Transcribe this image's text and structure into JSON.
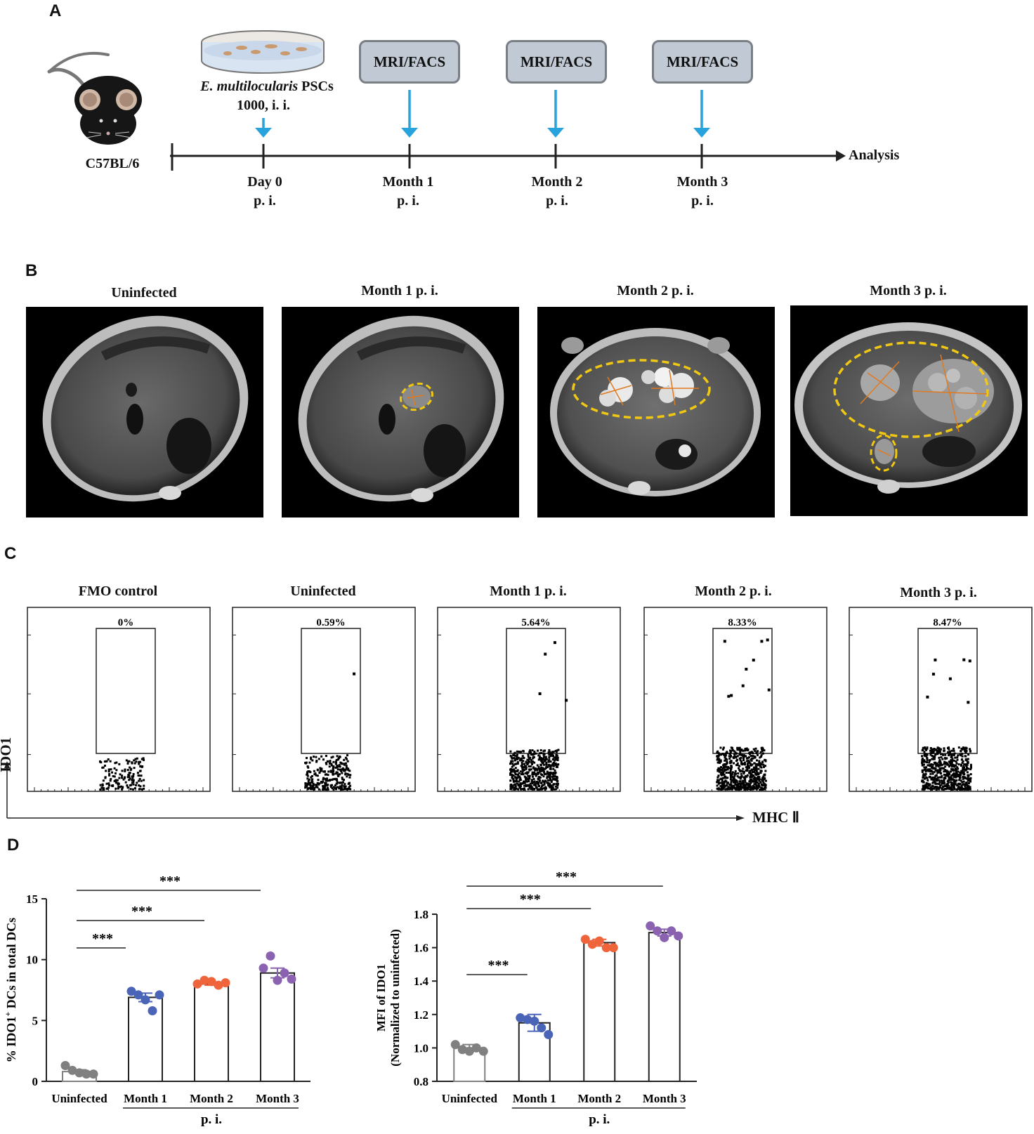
{
  "panels": {
    "a": "A",
    "b": "B",
    "c": "C",
    "d": "D"
  },
  "timeline": {
    "mouse_label": "C57BL/6",
    "psc_label_italic": "E. multilocularis",
    "psc_label_rest": " PSCs",
    "psc_dose": "1000, i. i.",
    "box_label": "MRI/FACS",
    "analysis": "Analysis",
    "ticks": [
      {
        "line1": "Day 0",
        "line2": "p. i."
      },
      {
        "line1": "Month 1",
        "line2": "p. i."
      },
      {
        "line1": "Month 2",
        "line2": "p. i."
      },
      {
        "line1": "Month 3",
        "line2": "p. i."
      }
    ]
  },
  "mri": {
    "titles": [
      "Uninfected",
      "Month 1 p. i.",
      "Month 2 p. i.",
      "Month 3 p. i."
    ]
  },
  "facs": {
    "titles": [
      "FMO control",
      "Uninfected",
      "Month 1 p. i.",
      "Month 2 p. i.",
      "Month 3 p. i."
    ],
    "gate_percents": [
      "0%",
      "0.59%",
      "5.64%",
      "8.33%",
      "8.47%"
    ],
    "point_counts_relative": [
      0.25,
      0.45,
      0.85,
      1.0,
      1.0
    ],
    "ylabel": "IDO1",
    "xlabel": "MHC Ⅱ"
  },
  "chart_data": [
    {
      "type": "bar",
      "categories": [
        "Uninfected",
        "Month 1",
        "Month 2",
        "Month 3"
      ],
      "group_label": "p. i.",
      "ylabel": "% IDO1+ DCs in total DCs",
      "ylabel_main": "% IDO1",
      "ylabel_sup": "+",
      "ylabel_rest": " DCs in total DCs",
      "ylim": [
        0,
        15
      ],
      "yticks": [
        0,
        5,
        10,
        15
      ],
      "values": [
        0.8,
        6.9,
        8.0,
        8.9
      ],
      "errors": [
        0.15,
        0.35,
        0.1,
        0.4
      ],
      "points": [
        [
          1.3,
          0.9,
          0.7,
          0.6,
          0.6
        ],
        [
          7.4,
          7.1,
          6.7,
          5.8,
          7.1
        ],
        [
          8.0,
          8.3,
          8.2,
          7.9,
          8.1
        ],
        [
          9.3,
          10.3,
          8.3,
          8.9,
          8.4
        ]
      ],
      "colors": [
        "#808080",
        "#4a64b8",
        "#f0643c",
        "#8a62b0"
      ],
      "significance": [
        {
          "from": 0,
          "to": 1,
          "label": "***"
        },
        {
          "from": 0,
          "to": 2,
          "label": "***"
        },
        {
          "from": 0,
          "to": 3,
          "label": "***"
        }
      ]
    },
    {
      "type": "bar",
      "categories": [
        "Uninfected",
        "Month 1",
        "Month 2",
        "Month 3"
      ],
      "group_label": "p. i.",
      "ylabel": "MFI of IDO1 (Normalized to uninfected)",
      "ylabel_line1": "MFI of IDO1",
      "ylabel_line2": "(Normalized to uninfected)",
      "ylim": [
        0.8,
        1.8
      ],
      "yticks": [
        "0.8",
        "1.0",
        "1.2",
        "1.4",
        "1.6",
        "1.8"
      ],
      "values": [
        1.0,
        1.15,
        1.63,
        1.69
      ],
      "errors": [
        0.02,
        0.05,
        0.02,
        0.02
      ],
      "points": [
        [
          1.02,
          0.99,
          0.98,
          1.0,
          0.98
        ],
        [
          1.18,
          1.17,
          1.16,
          1.12,
          1.08
        ],
        [
          1.65,
          1.62,
          1.64,
          1.6,
          1.6
        ],
        [
          1.73,
          1.7,
          1.66,
          1.7,
          1.67
        ]
      ],
      "colors": [
        "#808080",
        "#4a64b8",
        "#f0643c",
        "#8a62b0"
      ],
      "significance": [
        {
          "from": 0,
          "to": 1,
          "label": "***"
        },
        {
          "from": 0,
          "to": 2,
          "label": "***"
        },
        {
          "from": 0,
          "to": 3,
          "label": "***"
        }
      ]
    }
  ]
}
